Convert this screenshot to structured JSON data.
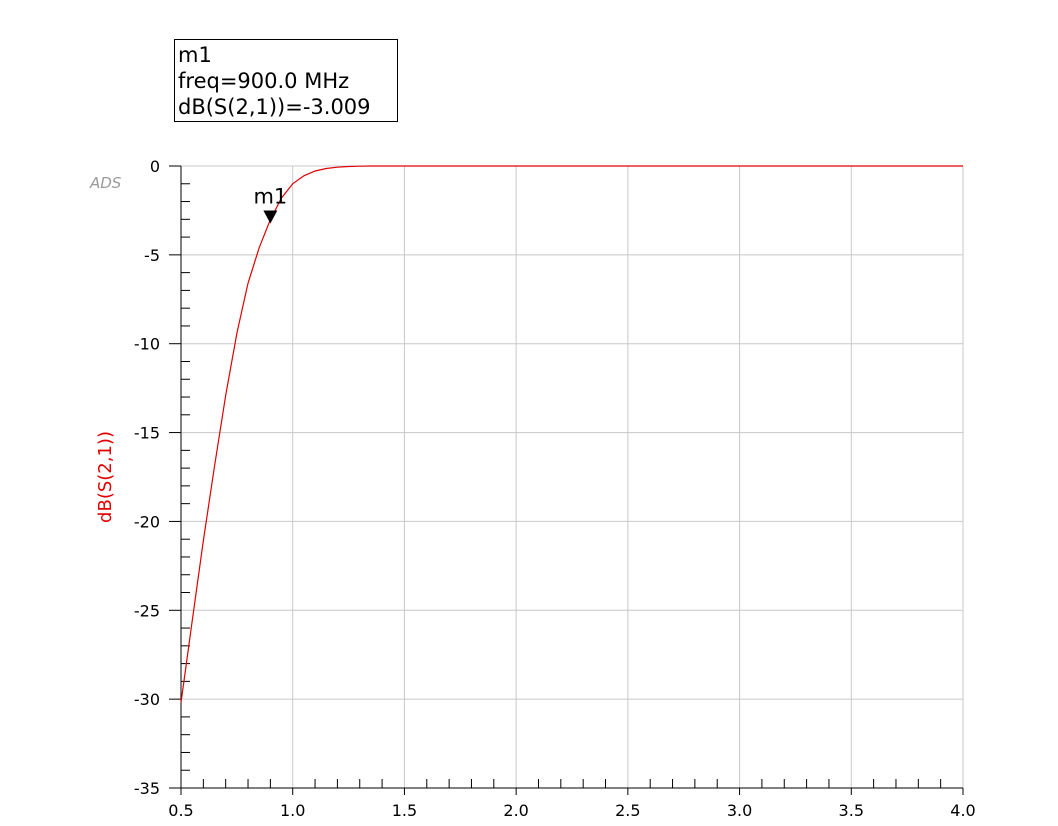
{
  "watermark": "ADS",
  "marker_readout": {
    "name": "m1",
    "freq_line": "freq=900.0 MHz",
    "value_line": "dB(S(2,1))=-3.009"
  },
  "chart_data": {
    "type": "line",
    "title": "",
    "xlabel": "",
    "ylabel": "dB(S(2,1))",
    "xlim": [
      0.5,
      4.0
    ],
    "ylim": [
      -35,
      0
    ],
    "x_ticks": [
      0.5,
      1.0,
      1.5,
      2.0,
      2.5,
      3.0,
      3.5,
      4.0
    ],
    "x_tick_labels": [
      "0.5",
      "1.0",
      "1.5",
      "2.0",
      "2.5",
      "3.0",
      "3.5",
      "4.0"
    ],
    "y_ticks": [
      0,
      -5,
      -10,
      -15,
      -20,
      -25,
      -30,
      -35
    ],
    "y_tick_labels": [
      "0",
      "-5",
      "-10",
      "-15",
      "-20",
      "-25",
      "-30",
      "-35"
    ],
    "grid": true,
    "series": [
      {
        "name": "dB(S(2,1))",
        "color": "#e00000",
        "x": [
          0.5,
          0.55,
          0.6,
          0.65,
          0.7,
          0.75,
          0.8,
          0.85,
          0.9,
          0.95,
          1.0,
          1.05,
          1.1,
          1.15,
          1.2,
          1.25,
          1.3,
          1.35,
          1.4,
          1.5,
          2.0,
          2.5,
          3.0,
          3.5,
          4.0
        ],
        "y": [
          -30.2,
          -25.6,
          -21.1,
          -16.9,
          -12.9,
          -9.4,
          -6.6,
          -4.6,
          -3.009,
          -1.8,
          -1.0,
          -0.55,
          -0.28,
          -0.14,
          -0.07,
          -0.03,
          -0.01,
          0,
          0,
          0,
          0,
          0,
          0,
          0,
          0
        ]
      }
    ],
    "markers": [
      {
        "name": "m1",
        "x": 0.9,
        "y": -3.009
      }
    ]
  }
}
